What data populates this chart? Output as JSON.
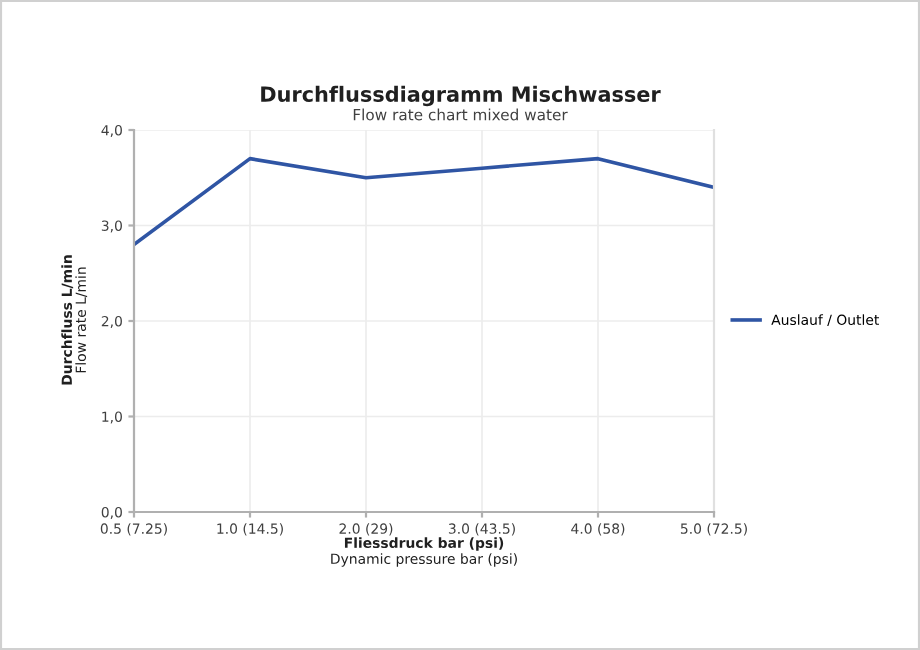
{
  "chart_data": {
    "type": "line",
    "title": "Durchflussdiagramm Mischwasser",
    "subtitle": "Flow rate chart mixed water",
    "xlabel": "Fliessdruck bar (psi)\nDynamic pressure bar (psi)",
    "ylabel": "Durchfluss L/min\nFlow rate L/min",
    "categories": [
      "0.5 (7.25)",
      "1.0 (14.5)",
      "2.0 (29)",
      "3.0 (43.5)",
      "4.0 (58)",
      "5.0 (72.5)"
    ],
    "series": [
      {
        "name": "Auslauf / Outlet",
        "color": "#2f55a4",
        "values": [
          2.8,
          3.7,
          3.5,
          3.6,
          3.7,
          3.4
        ]
      }
    ],
    "ylim": [
      0,
      4
    ],
    "yticks": [
      {
        "value": 0,
        "label": "0,0"
      },
      {
        "value": 1,
        "label": "1,0"
      },
      {
        "value": 2,
        "label": "2,0"
      },
      {
        "value": 3,
        "label": "3,0"
      },
      {
        "value": 4,
        "label": "4,0"
      }
    ],
    "grid": true,
    "legend": "right",
    "marker": "none",
    "line_style": "solid"
  }
}
